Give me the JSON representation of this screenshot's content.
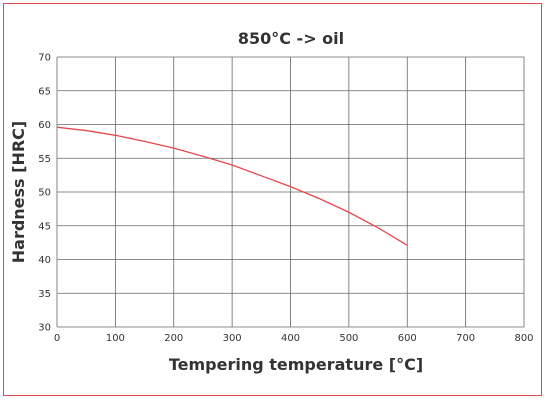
{
  "chart_data": {
    "type": "line",
    "title": "850°C -> oil",
    "xlabel": "Tempering temperature [°C]",
    "ylabel": "Hardness [HRC]",
    "xlim": [
      0,
      800
    ],
    "ylim": [
      30,
      70
    ],
    "xticks": [
      0,
      100,
      200,
      300,
      400,
      500,
      600,
      700,
      800
    ],
    "yticks": [
      30,
      35,
      40,
      45,
      50,
      55,
      60,
      65,
      70
    ],
    "grid": true,
    "colors": {
      "line": "#e5484d",
      "grid": "#666666",
      "frame": "#e5484d"
    },
    "series": [
      {
        "x": [
          0,
          50,
          100,
          150,
          200,
          250,
          300,
          350,
          400,
          450,
          500,
          550,
          600
        ],
        "y": [
          59.6,
          59.1,
          58.4,
          57.5,
          56.5,
          55.3,
          54.0,
          52.4,
          50.8,
          49.0,
          47.0,
          44.7,
          42.1
        ]
      }
    ]
  }
}
